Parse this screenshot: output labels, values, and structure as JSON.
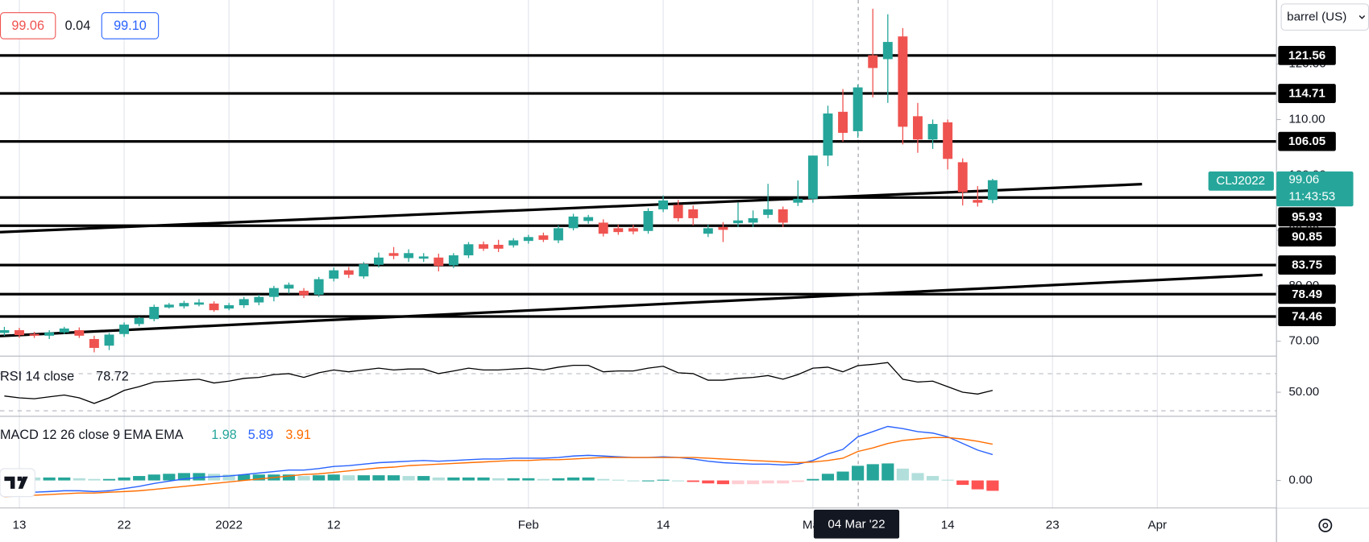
{
  "chart_data": {
    "type": "candlestick",
    "header": {
      "bid": "99.06",
      "spread": "0.04",
      "ask": "99.10"
    },
    "unit_selector": "barrel (US)",
    "symbol": "CLJ2022",
    "countdown": "11:43:53",
    "crosshair_label": "04 Mar '22",
    "up_color": "#26a69a",
    "down_color": "#ef5350",
    "categories": [
      null,
      "13",
      null,
      null,
      null,
      null,
      null,
      null,
      "22",
      null,
      null,
      null,
      null,
      null,
      null,
      "2022",
      null,
      null,
      null,
      null,
      null,
      null,
      "12",
      null,
      null,
      null,
      null,
      null,
      null,
      null,
      null,
      null,
      null,
      null,
      null,
      "Feb",
      null,
      null,
      null,
      null,
      null,
      null,
      null,
      null,
      "14",
      null,
      null,
      null,
      null,
      null,
      null,
      null,
      null,
      null,
      "Mar",
      null,
      null,
      null,
      null,
      null,
      null,
      null,
      null,
      "14",
      null,
      null,
      null,
      null,
      null,
      null,
      "23",
      null,
      null,
      null,
      null,
      null,
      null,
      "Apr"
    ],
    "open": [
      71.5,
      72.0,
      71.3,
      71.0,
      71.6,
      72.0,
      70.4,
      69.2,
      71.3,
      73.1,
      74.0,
      76.1,
      76.3,
      76.6,
      76.8,
      75.9,
      76.5,
      77.0,
      78.0,
      79.5,
      79.1,
      78.4,
      81.3,
      82.8,
      81.7,
      83.8,
      85.9,
      85.0,
      84.9,
      85.1,
      83.7,
      85.5,
      87.5,
      87.4,
      87.3,
      88.1,
      89.1,
      88.2,
      90.4,
      91.7,
      91.4,
      90.4,
      90.4,
      89.9,
      93.8,
      94.6,
      93.8,
      89.4,
      90.6,
      91.3,
      91.4,
      92.8,
      93.8,
      95.0,
      95.7,
      103.5,
      111.4,
      107.9,
      121.6,
      120.9,
      125.0,
      110.6,
      106.4,
      109.5,
      102.3,
      95.5,
      95.5,
      null,
      null,
      null,
      null,
      null,
      null,
      null,
      null,
      null,
      null,
      null
    ],
    "high": [
      72.6,
      72.4,
      71.7,
      72.0,
      72.6,
      72.5,
      71.0,
      71.5,
      73.4,
      74.4,
      76.6,
      76.9,
      77.3,
      77.6,
      77.2,
      76.9,
      78.0,
      78.4,
      80.0,
      80.6,
      79.6,
      81.6,
      83.3,
      83.4,
      84.3,
      86.0,
      87.0,
      86.6,
      85.9,
      85.8,
      85.9,
      87.9,
      88.0,
      88.3,
      88.6,
      89.2,
      89.6,
      90.9,
      93.0,
      92.8,
      92.0,
      91.0,
      91.0,
      94.0,
      96.3,
      95.5,
      94.5,
      91.0,
      91.5,
      95.0,
      93.6,
      98.4,
      94.3,
      99.0,
      103.5,
      112.5,
      115.5,
      116.3,
      130.0,
      129.0,
      126.5,
      113.0,
      110.0,
      110.0,
      103.0,
      98.0,
      99.3,
      null,
      null,
      null,
      null,
      null,
      null,
      null,
      null,
      null,
      null,
      null
    ],
    "low": [
      71.0,
      70.6,
      70.6,
      70.4,
      71.3,
      70.6,
      68.0,
      68.4,
      70.8,
      72.7,
      73.6,
      75.9,
      75.9,
      76.3,
      75.3,
      75.6,
      76.0,
      76.5,
      77.2,
      78.6,
      77.8,
      78.0,
      80.8,
      81.4,
      81.3,
      83.3,
      84.8,
      84.3,
      84.3,
      82.6,
      83.2,
      85.0,
      86.3,
      86.1,
      86.9,
      87.6,
      87.9,
      87.7,
      90.0,
      91.2,
      88.9,
      89.2,
      89.3,
      89.4,
      93.3,
      91.6,
      90.9,
      88.8,
      87.9,
      90.6,
      90.6,
      92.2,
      90.6,
      94.4,
      95.0,
      101.6,
      106.0,
      106.7,
      114.0,
      113.0,
      105.5,
      104.0,
      104.7,
      101.0,
      94.5,
      94.3,
      94.9,
      null,
      null,
      null,
      null,
      null,
      null,
      null,
      null,
      null,
      null,
      null
    ],
    "close": [
      72.0,
      71.1,
      71.0,
      71.6,
      72.3,
      71.0,
      68.8,
      71.2,
      73.0,
      74.2,
      76.2,
      76.6,
      76.9,
      77.0,
      75.6,
      76.5,
      77.6,
      78.0,
      79.6,
      80.2,
      78.3,
      81.2,
      82.8,
      82.0,
      83.9,
      85.1,
      85.4,
      85.9,
      85.3,
      83.6,
      85.5,
      87.5,
      86.7,
      86.7,
      88.2,
      88.8,
      88.3,
      90.4,
      92.5,
      92.4,
      89.4,
      89.7,
      89.8,
      93.5,
      95.4,
      92.2,
      92.2,
      90.4,
      90.1,
      91.8,
      92.2,
      93.8,
      91.4,
      95.7,
      103.5,
      111.1,
      107.6,
      115.8,
      119.3,
      124.0,
      108.7,
      106.4,
      109.2,
      102.9,
      96.9,
      95.0,
      99.06,
      null,
      null,
      null,
      null,
      null,
      null,
      null,
      null,
      null,
      null,
      null
    ],
    "ylim": [
      67.32,
      131.57
    ],
    "yticks": [
      {
        "value": 70,
        "label": "70.00"
      },
      {
        "value": 80,
        "label": "80.00"
      },
      {
        "value": 90,
        "label": "90.00"
      },
      {
        "value": 100,
        "label": "100.00"
      },
      {
        "value": 110,
        "label": "110.00"
      },
      {
        "value": 120,
        "label": "120.00"
      }
    ],
    "levels": [
      121.56,
      114.71,
      106.05,
      95.93,
      90.85,
      83.75,
      78.49,
      74.46
    ],
    "level_color": "#000000",
    "rsi": {
      "title": "RSI 14 close",
      "readout": "78.72",
      "color": "#000000",
      "values": [
        46,
        44,
        43,
        45,
        47,
        44,
        38,
        44,
        52,
        56,
        61,
        62,
        63,
        64,
        60,
        62,
        65,
        66,
        69,
        70,
        66,
        71,
        74,
        72,
        74,
        76,
        74,
        75,
        75,
        70,
        73,
        76,
        74,
        74,
        75,
        76,
        74,
        77,
        79,
        79,
        72,
        73,
        73,
        76,
        78,
        71,
        70,
        63,
        63,
        65,
        66,
        68,
        64,
        69,
        76,
        77,
        72,
        78.72,
        80,
        82,
        64,
        61,
        62,
        56,
        50,
        48,
        52,
        null,
        null,
        null,
        null,
        null,
        null,
        null,
        null,
        null,
        null,
        null
      ],
      "ylim": [
        25,
        88
      ],
      "yticks": [
        {
          "value": 50,
          "label": "50.00"
        }
      ],
      "bands": [
        30,
        70
      ]
    },
    "macd": {
      "title": "MACD 12 26 close 9 EMA EMA",
      "ylim": [
        -3.6,
        8.55
      ],
      "yticks": [
        {
          "value": 0,
          "label": "0.00"
        }
      ],
      "histogram": {
        "readout": "1.98",
        "color": "#26a69a",
        "bar_colors": [
          "#26a69a",
          "#b2dfdb",
          "#ff5252",
          "#ffcdd2"
        ],
        "values": [
          0.6,
          0.5,
          0.4,
          0.4,
          0.4,
          0.3,
          0.2,
          0.2,
          0.4,
          0.6,
          0.8,
          0.9,
          1.0,
          1.0,
          0.9,
          0.8,
          0.8,
          0.8,
          0.8,
          0.8,
          0.6,
          0.7,
          0.8,
          0.7,
          0.7,
          0.7,
          0.7,
          0.6,
          0.6,
          0.4,
          0.4,
          0.4,
          0.4,
          0.3,
          0.3,
          0.3,
          0.2,
          0.3,
          0.4,
          0.4,
          0.2,
          0.1,
          0.0,
          0.0,
          0.1,
          0.0,
          -0.2,
          -0.4,
          -0.5,
          -0.5,
          -0.5,
          -0.4,
          -0.4,
          -0.2,
          0.2,
          0.9,
          1.2,
          1.98,
          2.2,
          2.3,
          1.6,
          1.0,
          0.6,
          0.1,
          -0.6,
          -1.2,
          -1.4,
          null,
          null,
          null,
          null,
          null,
          null,
          null,
          null,
          null,
          null,
          null
        ]
      },
      "macd_line": {
        "readout": "5.89",
        "color": "#2962ff",
        "values": [
          -1.6,
          -1.6,
          -1.6,
          -1.5,
          -1.4,
          -1.4,
          -1.5,
          -1.4,
          -1.1,
          -0.8,
          -0.4,
          -0.1,
          0.2,
          0.4,
          0.5,
          0.6,
          0.8,
          1.0,
          1.2,
          1.4,
          1.4,
          1.6,
          1.9,
          2.0,
          2.2,
          2.4,
          2.5,
          2.6,
          2.7,
          2.6,
          2.7,
          2.8,
          2.9,
          2.9,
          3.0,
          3.0,
          3.0,
          3.1,
          3.3,
          3.4,
          3.3,
          3.2,
          3.1,
          3.1,
          3.2,
          3.1,
          2.9,
          2.6,
          2.4,
          2.3,
          2.2,
          2.2,
          2.1,
          2.2,
          2.7,
          3.6,
          4.2,
          5.89,
          6.6,
          7.3,
          7.0,
          6.6,
          6.4,
          5.9,
          5.0,
          4.1,
          3.5,
          null,
          null,
          null,
          null,
          null,
          null,
          null,
          null,
          null,
          null,
          null
        ]
      },
      "signal_line": {
        "readout": "3.91",
        "color": "#ff6d00",
        "values": [
          -2.2,
          -2.1,
          -2.0,
          -1.9,
          -1.8,
          -1.7,
          -1.7,
          -1.6,
          -1.5,
          -1.4,
          -1.2,
          -1.0,
          -0.8,
          -0.6,
          -0.4,
          -0.2,
          0.0,
          0.2,
          0.4,
          0.6,
          0.8,
          0.9,
          1.1,
          1.3,
          1.5,
          1.7,
          1.8,
          2.0,
          2.1,
          2.2,
          2.3,
          2.4,
          2.5,
          2.6,
          2.7,
          2.7,
          2.8,
          2.8,
          2.9,
          3.0,
          3.1,
          3.1,
          3.1,
          3.1,
          3.1,
          3.1,
          3.1,
          3.0,
          2.9,
          2.8,
          2.7,
          2.6,
          2.5,
          2.4,
          2.5,
          2.7,
          3.0,
          3.91,
          4.4,
          5.0,
          5.4,
          5.6,
          5.8,
          5.8,
          5.6,
          5.3,
          4.9,
          null,
          null,
          null,
          null,
          null,
          null,
          null,
          null,
          null,
          null,
          null
        ]
      }
    }
  }
}
